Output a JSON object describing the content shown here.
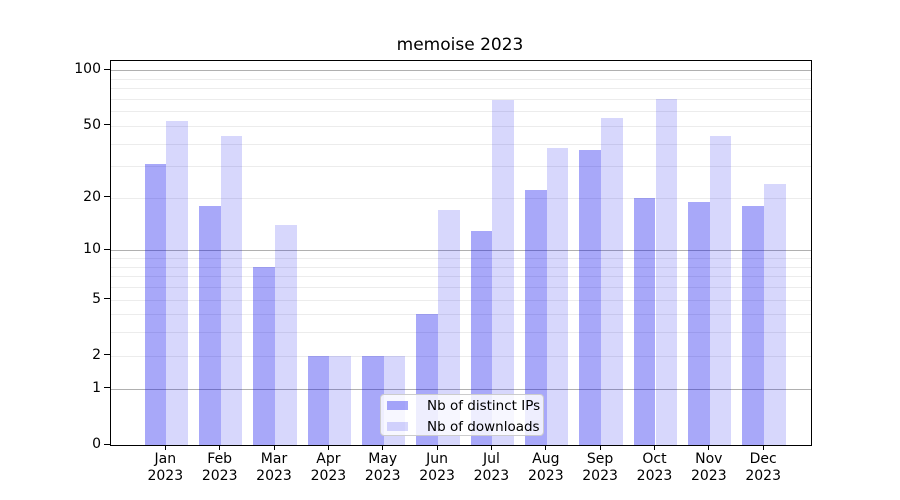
{
  "title": "memoise 2023",
  "chart_data": {
    "type": "bar",
    "title": "memoise 2023",
    "xlabel": "",
    "ylabel": "",
    "yscale": "log1p",
    "ylim": [
      0,
      112
    ],
    "grid": true,
    "x_tick_labels": [
      [
        "Jan",
        "2023"
      ],
      [
        "Feb",
        "2023"
      ],
      [
        "Mar",
        "2023"
      ],
      [
        "Apr",
        "2023"
      ],
      [
        "May",
        "2023"
      ],
      [
        "Jun",
        "2023"
      ],
      [
        "Jul",
        "2023"
      ],
      [
        "Aug",
        "2023"
      ],
      [
        "Sep",
        "2023"
      ],
      [
        "Oct",
        "2023"
      ],
      [
        "Nov",
        "2023"
      ],
      [
        "Dec",
        "2023"
      ]
    ],
    "categories": [
      "Jan 2023",
      "Feb 2023",
      "Mar 2023",
      "Apr 2023",
      "May 2023",
      "Jun 2023",
      "Jul 2023",
      "Aug 2023",
      "Sep 2023",
      "Oct 2023",
      "Nov 2023",
      "Dec 2023"
    ],
    "series": [
      {
        "name": "Nb of distinct IPs",
        "color": "rgba(0,0,238,0.34)",
        "values": [
          31,
          18,
          8,
          2,
          2,
          4,
          13,
          22,
          37,
          20,
          19,
          18
        ]
      },
      {
        "name": "Nb of downloads",
        "color": "rgba(0,0,238,0.155)",
        "values": [
          53,
          44,
          14,
          2,
          2,
          17,
          69,
          38,
          55,
          70,
          44,
          24
        ]
      }
    ],
    "y_tick_labels": [
      "100",
      "50",
      "20",
      "10",
      "5",
      "2",
      "1",
      "0"
    ],
    "y_tick_values": [
      100,
      50,
      20,
      10,
      5,
      2,
      1,
      0
    ],
    "y_major_gridlines": [
      1,
      10,
      100
    ],
    "y_minor_gridlines": [
      2,
      3,
      4,
      5,
      6,
      7,
      8,
      9,
      20,
      30,
      40,
      50,
      60,
      70,
      80,
      90
    ],
    "legend_position": "lower center"
  },
  "colors": {
    "background": "#ffffff",
    "spine": "#000000",
    "grid_minor": "#ececec",
    "grid_major": "#b0b0b0",
    "text": "#000000",
    "legend_border": "#cccccc",
    "legend_background": "rgba(255,255,255,0.8)"
  }
}
